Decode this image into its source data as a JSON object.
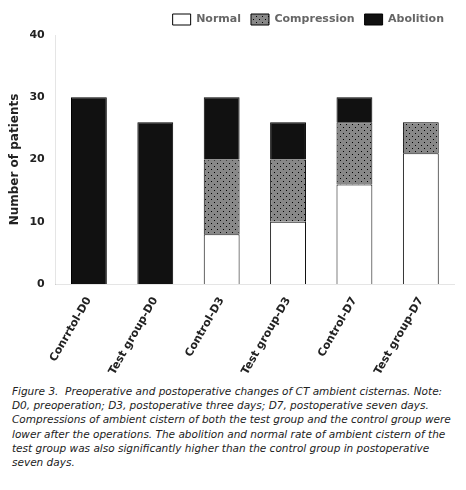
{
  "chart_data": {
    "type": "bar",
    "categories": [
      "Conrrtol-D0",
      "Test group-D0",
      "Control-D3",
      "Test group-D3",
      "Control-D7",
      "Test group-D7"
    ],
    "series": [
      {
        "name": "Normal",
        "color": "#ffffff",
        "values": [
          0,
          0,
          8,
          10,
          16,
          21
        ]
      },
      {
        "name": "Compression",
        "color": "#888888",
        "values": [
          0,
          0,
          12,
          10,
          10,
          5
        ]
      },
      {
        "name": "Abolition",
        "color": "#111111",
        "values": [
          30,
          26,
          10,
          6,
          4,
          0
        ]
      }
    ],
    "ylabel": "Number of patients",
    "ylim": [
      0,
      40
    ],
    "yticks": [
      0,
      10,
      20,
      30,
      40
    ],
    "stacked": true,
    "grid": false,
    "legend": "top",
    "caption": "Figure 3.  Preoperative and postoperative changes of CT ambient cisternas. Note: D0, preoperation; D3, postoperative three days; D7, postoperative seven days.  Compressions of ambient cistern of both the test group and the control group were lower after the operations. The abolition and normal rate of ambient cistern of the test group was also significantly higher than the control group in postoperative seven days."
  }
}
